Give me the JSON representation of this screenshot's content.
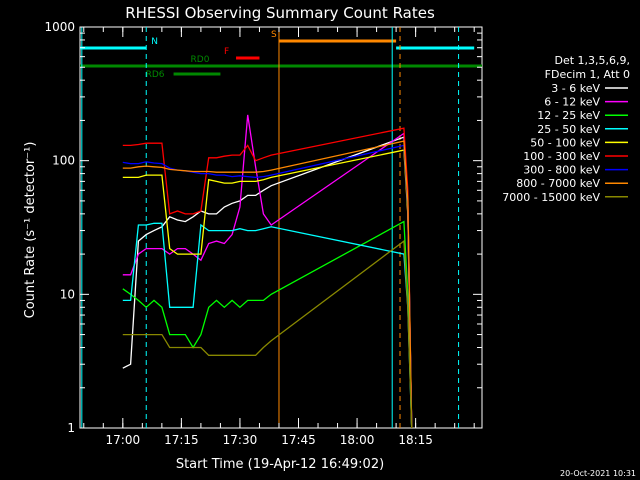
{
  "chart_data": {
    "type": "line",
    "title": "RHESSI Observing Summary Count Rates",
    "xlabel": "Start Time (19-Apr-12 16:49:02)",
    "ylabel": "Count Rate (s⁻¹ detector⁻¹)",
    "yscale": "log",
    "ylim": [
      1,
      1000
    ],
    "xlim": [
      "16:49:02",
      "18:32:00"
    ],
    "yticks": [
      {
        "value": 1,
        "label": "1"
      },
      {
        "value": 10,
        "label": "10"
      },
      {
        "value": 100,
        "label": "100"
      },
      {
        "value": 1000,
        "label": "1000"
      }
    ],
    "xticks": [
      {
        "value": "17:00",
        "label": "17:00"
      },
      {
        "value": "17:15",
        "label": "17:15"
      },
      {
        "value": "17:30",
        "label": "17:30"
      },
      {
        "value": "17:45",
        "label": "17:45"
      },
      {
        "value": "18:00",
        "label": "18:00"
      },
      {
        "value": "18:15",
        "label": "18:15"
      }
    ],
    "legend_header": [
      "Det 1,3,5,6,9,",
      "FDecim 1, Att 0"
    ],
    "legend_position": "right",
    "x": [
      "17:00",
      "17:02",
      "17:04",
      "17:06",
      "17:08",
      "17:10",
      "17:12",
      "17:14",
      "17:16",
      "17:18",
      "17:20",
      "17:22",
      "17:24",
      "17:26",
      "17:28",
      "17:30",
      "17:32",
      "17:34",
      "17:36",
      "17:38",
      "18:12",
      "18:13",
      "18:14"
    ],
    "series": [
      {
        "name": "3 - 6 keV",
        "color": "#ffffff",
        "values": [
          2.8,
          3,
          25,
          28,
          30,
          32,
          38,
          36,
          35,
          38,
          42,
          40,
          40,
          45,
          48,
          50,
          55,
          55,
          60,
          65,
          150,
          50,
          1
        ]
      },
      {
        "name": "6 - 12 keV",
        "color": "#ff00ff",
        "values": [
          14,
          14,
          20,
          22,
          22,
          22,
          20,
          22,
          22,
          20,
          18,
          24,
          25,
          24,
          28,
          45,
          220,
          90,
          40,
          33,
          160,
          40,
          1
        ]
      },
      {
        "name": "12 - 25 keV",
        "color": "#00ff00",
        "values": [
          11,
          10,
          9,
          8,
          9,
          8,
          5,
          5,
          5,
          4,
          5,
          8,
          9,
          8,
          9,
          8,
          9,
          9,
          9,
          10,
          35,
          10,
          1
        ]
      },
      {
        "name": "25 - 50 keV",
        "color": "#00ffff",
        "values": [
          9,
          9,
          33,
          33,
          34,
          34,
          8,
          8,
          8,
          8,
          33,
          30,
          30,
          30,
          30,
          31,
          30,
          30,
          31,
          32,
          20,
          8,
          1
        ]
      },
      {
        "name": "50 - 100 keV",
        "color": "#ffff00",
        "values": [
          75,
          75,
          75,
          78,
          78,
          78,
          22,
          20,
          20,
          20,
          20,
          72,
          70,
          68,
          68,
          70,
          70,
          70,
          72,
          75,
          120,
          40,
          1
        ]
      },
      {
        "name": "100 - 300 keV",
        "color": "#ff0000",
        "values": [
          130,
          130,
          132,
          135,
          135,
          135,
          40,
          42,
          40,
          40,
          42,
          105,
          105,
          108,
          110,
          110,
          130,
          100,
          105,
          110,
          175,
          60,
          1
        ]
      },
      {
        "name": "300 - 800 keV",
        "color": "#0000ff",
        "values": [
          97,
          95,
          95,
          98,
          96,
          95,
          88,
          85,
          84,
          82,
          80,
          80,
          78,
          78,
          76,
          77,
          76,
          75,
          76,
          78,
          130,
          45,
          1
        ]
      },
      {
        "name": "800 - 7000 keV",
        "color": "#ff8800",
        "values": [
          88,
          88,
          90,
          91,
          90,
          89,
          86,
          85,
          84,
          83,
          83,
          83,
          82,
          82,
          82,
          82,
          82,
          82,
          83,
          85,
          140,
          50,
          1
        ]
      },
      {
        "name": "7000 - 15000 keV",
        "color": "#888800",
        "values": [
          5,
          5,
          5,
          5,
          5,
          5,
          4,
          4,
          4,
          4,
          4,
          3.5,
          3.5,
          3.5,
          3.5,
          3.5,
          3.5,
          3.5,
          4,
          4.5,
          25,
          8,
          1
        ]
      }
    ],
    "flag_bars": [
      {
        "label": "N",
        "color": "#00ffff",
        "segments": [
          [
            "16:49:02",
            "17:06"
          ],
          [
            "18:10",
            "18:30"
          ]
        ]
      },
      {
        "label": "S",
        "color": "#ff8800",
        "segments": [
          [
            "17:40",
            "18:10"
          ]
        ]
      },
      {
        "label": "F",
        "color": "#ff0000",
        "segments": [
          [
            "17:29",
            "17:35"
          ]
        ]
      },
      {
        "label": "RD0",
        "color": "#008800",
        "segments": [
          [
            "16:49:02",
            "18:32:00"
          ]
        ]
      },
      {
        "label": "RD6",
        "color": "#008800",
        "segments": [
          [
            "17:13",
            "17:25"
          ]
        ]
      }
    ],
    "vertical_lines": [
      {
        "time": "16:49:30",
        "color": "#00ffff",
        "style": "solid"
      },
      {
        "time": "17:06",
        "color": "#00ffff",
        "style": "dashed"
      },
      {
        "time": "17:40",
        "color": "#ff8800",
        "style": "solid"
      },
      {
        "time": "18:09",
        "color": "#00ffff",
        "style": "solid"
      },
      {
        "time": "18:11",
        "color": "#ff8800",
        "style": "dashed"
      },
      {
        "time": "18:26",
        "color": "#00ffff",
        "style": "dashed"
      }
    ]
  },
  "footer_timestamp": "20-Oct-2021 10:31"
}
